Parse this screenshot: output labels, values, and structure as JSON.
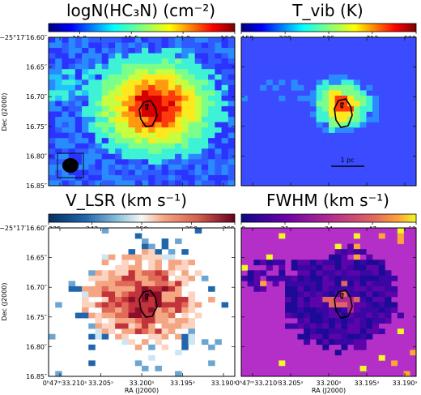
{
  "figure": {
    "ra_ticks": [
      "0ʰ47ᵐ33.210ˢ",
      "33.205ˢ",
      "33.200ˢ",
      "33.195ˢ",
      "33.190ˢ"
    ],
    "dec_ticks": [
      "−25°17′16.60″",
      "16.65″",
      "16.70″",
      "16.75″",
      "16.80″",
      "16.85″"
    ],
    "xlabel": "RA (J2000)",
    "ylabel": "Dec (J2000)"
  },
  "chart_data": [
    {
      "type": "heatmap",
      "title": "logN(HC₃N) (cm⁻²)",
      "colorbar": {
        "ticks": [
          "15.0",
          "15.5",
          "16.0",
          "16.5"
        ],
        "range": [
          14.7,
          16.5
        ],
        "cmap": "jet"
      },
      "annotations": [
        "beam ellipse (lower-left)",
        "black contour at core"
      ],
      "show_yticks": true,
      "show_xticks": false
    },
    {
      "type": "heatmap",
      "title": "T_vib (K)",
      "colorbar": {
        "ticks": [
          "150",
          "338",
          "525",
          "712",
          "900"
        ],
        "range": [
          150,
          900
        ],
        "cmap": "jet"
      },
      "annotations": [
        "black contour at core",
        "1 pc"
      ],
      "show_yticks": false,
      "show_xticks": false
    },
    {
      "type": "heatmap",
      "title": "V_LSR (km s⁻¹)",
      "colorbar": {
        "ticks": [
          "235",
          "242",
          "250",
          "258",
          "265"
        ],
        "range": [
          235,
          265
        ],
        "cmap": "RdBu_r"
      },
      "annotations": [
        "black contour at core"
      ],
      "show_yticks": true,
      "show_xticks": true
    },
    {
      "type": "heatmap",
      "title": "FWHM (km s⁻¹)",
      "colorbar": {
        "ticks": [
          "8",
          "21",
          "34",
          "47",
          "60"
        ],
        "range": [
          8,
          60
        ],
        "cmap": "plasma"
      },
      "annotations": [
        "black contour at core"
      ],
      "show_yticks": false,
      "show_xticks": true
    }
  ]
}
